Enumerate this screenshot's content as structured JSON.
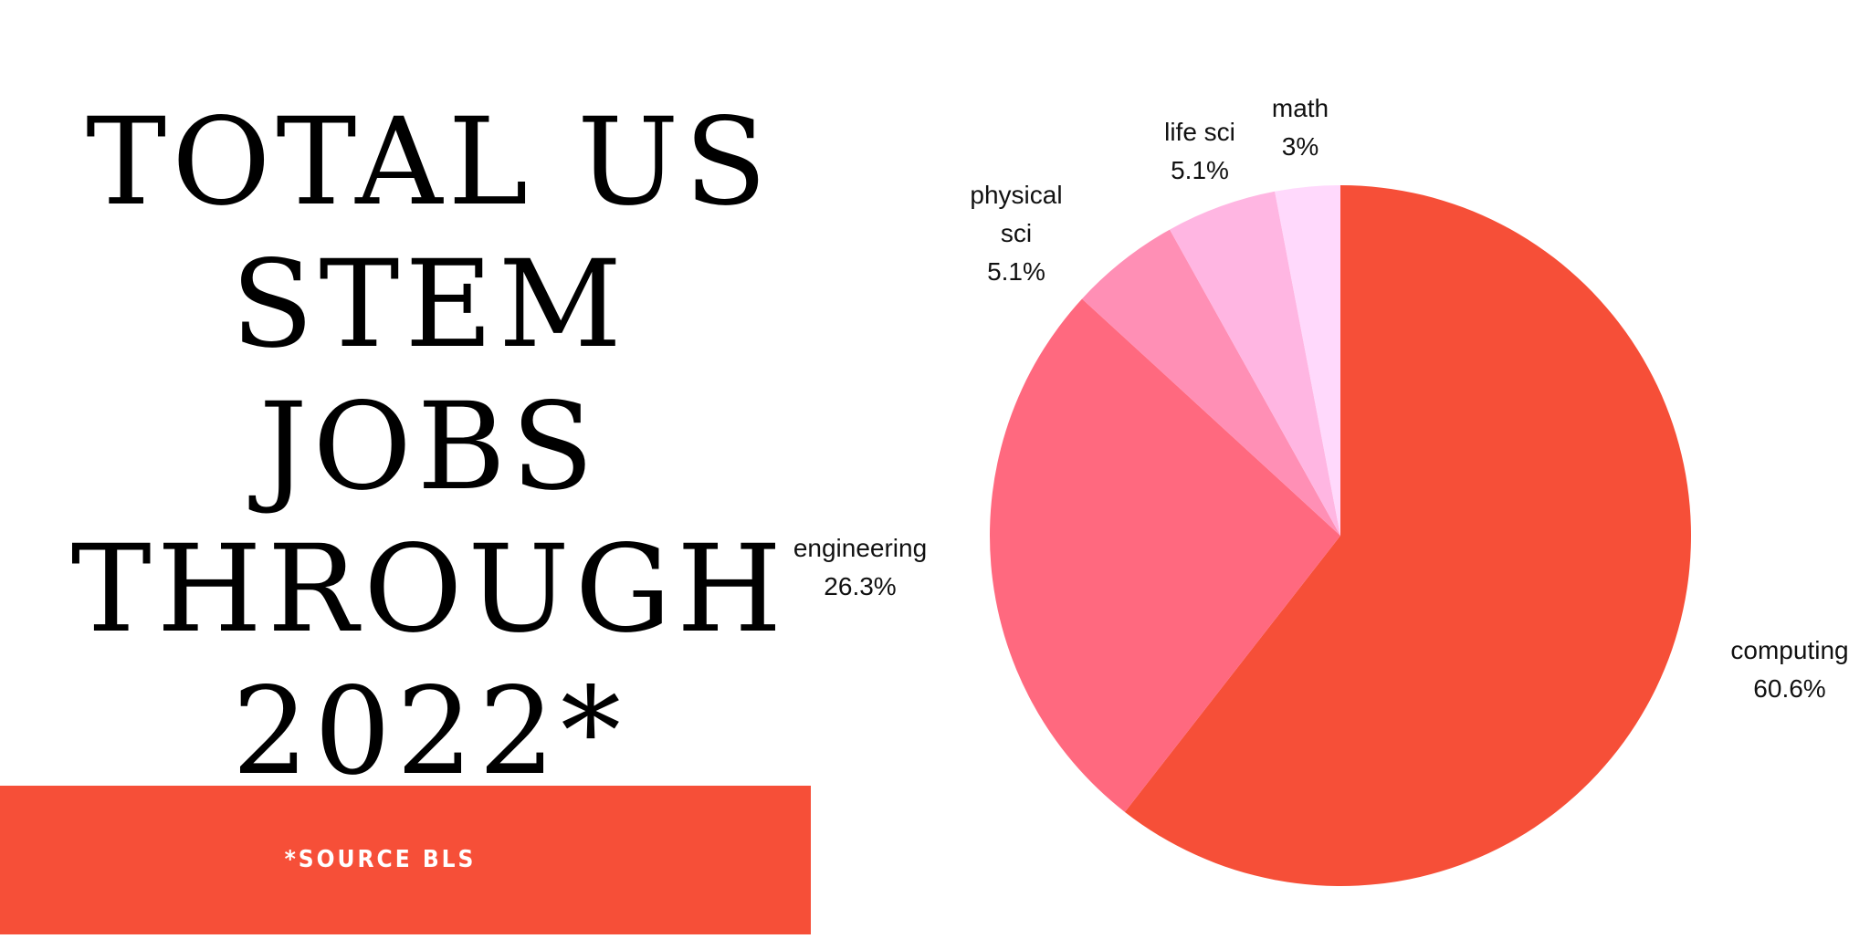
{
  "title": {
    "lines": [
      "TOTAL US",
      "STEM JOBS",
      "THROUGH",
      "2022*"
    ]
  },
  "footer": {
    "source": "*SOURCE BLS",
    "color": "#F64F38"
  },
  "chart_data": {
    "type": "pie",
    "title": "TOTAL US STEM JOBS THROUGH 2022*",
    "categories": [
      "computing",
      "engineering",
      "physical sci",
      "life sci",
      "math"
    ],
    "values": [
      60.6,
      26.3,
      5.1,
      5.1,
      3.0
    ],
    "unit": "%",
    "colors": [
      "#F64F38",
      "#FF697F",
      "#FF8FB5",
      "#FFB6E2",
      "#FFD9FC"
    ],
    "start_angle_deg": 0,
    "direction": "clockwise",
    "labels": [
      {
        "name": "computing",
        "value_text": "60.6%"
      },
      {
        "name": "engineering",
        "value_text": "26.3%"
      },
      {
        "name": "physical sci",
        "value_text": "5.1%"
      },
      {
        "name": "life sci",
        "value_text": "5.1%"
      },
      {
        "name": "math",
        "value_text": "3%"
      }
    ],
    "source_note": "*SOURCE BLS"
  }
}
